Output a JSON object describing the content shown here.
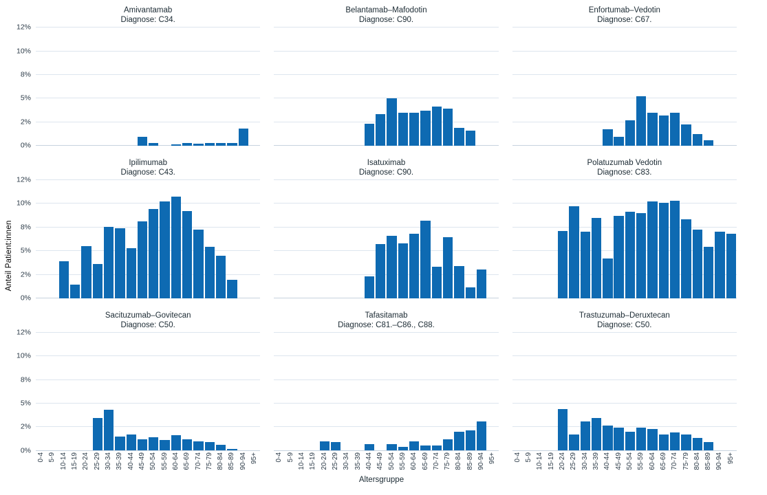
{
  "figure": {
    "y_axis_title": "Anteil Patient:innen",
    "x_axis_title": "Altersgruppe",
    "colors": {
      "bar": "#0E6AB2",
      "grid": "#DDE5EE",
      "baseline": "#C6D2DE",
      "title_text": "#1B2A33",
      "tick_text": "#2B3A47"
    }
  },
  "chart_data": {
    "type": "bar",
    "layout": {
      "rows": 3,
      "cols": 3,
      "legend": "none",
      "grid": true,
      "facet_titles": "top-center",
      "x_axis_shared": true
    },
    "categories": [
      "0-4",
      "5-9",
      "10-14",
      "15-19",
      "20-24",
      "25-29",
      "30-34",
      "35-39",
      "40-44",
      "45-49",
      "50-54",
      "55-59",
      "60-64",
      "65-69",
      "70-74",
      "75-79",
      "80-84",
      "85-89",
      "90-94",
      "95+"
    ],
    "y_axis": {
      "unit": "percent",
      "max": 12.5,
      "tick_values": [
        0,
        2.5,
        5,
        7.5,
        10,
        12.5
      ],
      "tick_labels": [
        "0%",
        "2%",
        "5%",
        "8%",
        "10%",
        "12%"
      ]
    },
    "facets": [
      {
        "title": "Amivantamab",
        "subtitle": "Diagnose: C34.",
        "values": [
          0,
          0,
          0,
          0,
          0,
          0,
          0,
          0,
          0,
          0.9,
          0.3,
          0,
          0.15,
          0.25,
          0.2,
          0.25,
          0.3,
          0.3,
          1.8,
          0
        ]
      },
      {
        "title": "Belantamab–Mafodotin",
        "subtitle": "Diagnose: C90.",
        "values": [
          0,
          0,
          0,
          0,
          0,
          0,
          0,
          0,
          2.3,
          3.3,
          5,
          3.5,
          3.5,
          3.7,
          4.1,
          3.9,
          1.9,
          1.6,
          0,
          0
        ]
      },
      {
        "title": "Enfortumab–Vedotin",
        "subtitle": "Diagnose: C67.",
        "values": [
          0,
          0,
          0,
          0,
          0,
          0,
          0,
          0,
          1.7,
          0.9,
          2.7,
          5.2,
          3.5,
          3.2,
          3.5,
          2.2,
          1.2,
          0.6,
          0,
          0
        ]
      },
      {
        "title": "Ipilimumab",
        "subtitle": "Diagnose: C43.",
        "values": [
          0,
          0,
          3.9,
          1.4,
          5.5,
          3.6,
          7.5,
          7.4,
          5.3,
          8.1,
          9.4,
          10.2,
          10.7,
          9.2,
          7.2,
          5.4,
          4.5,
          1.9,
          0,
          0
        ]
      },
      {
        "title": "Isatuximab",
        "subtitle": "Diagnose: C90.",
        "values": [
          0,
          0,
          0,
          0,
          0,
          0,
          0,
          0,
          2.3,
          5.7,
          6.6,
          5.8,
          6.8,
          8.2,
          3.3,
          6.4,
          3.4,
          1.1,
          3,
          0
        ]
      },
      {
        "title": "Polatuzumab Vedotin",
        "subtitle": "Diagnose: C83.",
        "values": [
          0,
          0,
          0,
          0,
          7.1,
          9.7,
          7,
          8.5,
          4.2,
          8.7,
          9.1,
          9,
          10.2,
          10.1,
          10.3,
          8.3,
          7.2,
          5.4,
          7,
          6.8
        ]
      },
      {
        "title": "Sacituzumab–Govitecan",
        "subtitle": "Diagnose: C50.",
        "values": [
          0,
          0,
          0,
          0,
          0,
          3.4,
          4.3,
          1.5,
          1.7,
          1.2,
          1.4,
          1.1,
          1.6,
          1.2,
          1,
          0.9,
          0.6,
          0.15,
          0,
          0
        ]
      },
      {
        "title": "Tafasitamab",
        "subtitle": "Diagnose: C81.–C86., C88.",
        "values": [
          0,
          0,
          0,
          0,
          1,
          0.9,
          0,
          0,
          0.7,
          0,
          0.7,
          0.4,
          1,
          0.5,
          0.5,
          1.2,
          2,
          2.1,
          3.1,
          0
        ]
      },
      {
        "title": "Trastuzumab–Deruxtecan",
        "subtitle": "Diagnose: C50.",
        "values": [
          0,
          0,
          0,
          0,
          4.4,
          1.7,
          3.1,
          3.4,
          2.6,
          2.4,
          2,
          2.4,
          2.3,
          1.7,
          1.9,
          1.7,
          1.3,
          0.9,
          0,
          0
        ]
      }
    ]
  }
}
